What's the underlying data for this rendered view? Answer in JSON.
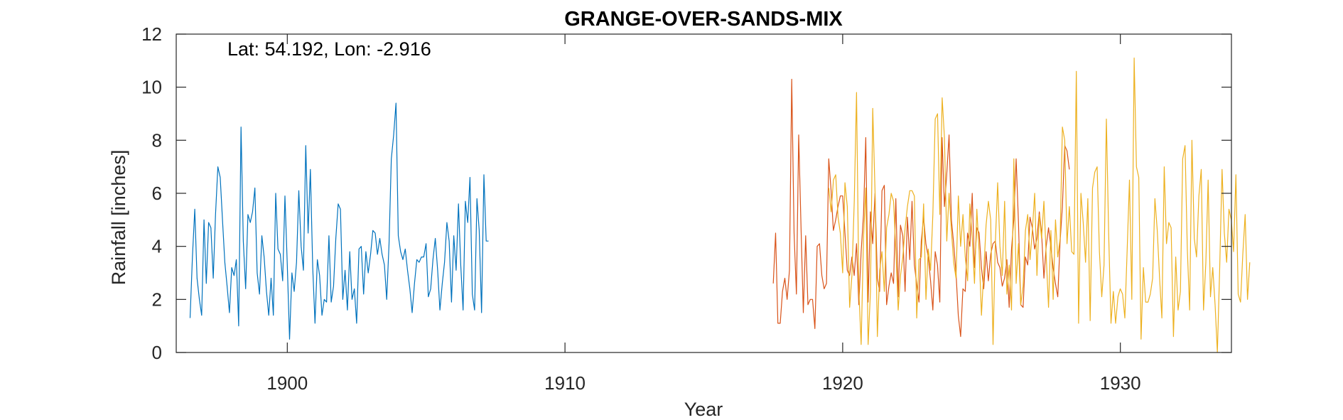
{
  "chart_data": {
    "type": "line",
    "title": "GRANGE-OVER-SANDS-MIX",
    "xlabel": "Year",
    "ylabel": "Rainfall [inches]",
    "xlim": [
      1896,
      1934
    ],
    "ylim": [
      0,
      12
    ],
    "xticks": [
      1900,
      1910,
      1920,
      1930
    ],
    "yticks": [
      0,
      2,
      4,
      6,
      8,
      10,
      12
    ],
    "grid": false,
    "annotation": "Lat: 54.192, Lon: -2.916",
    "series": [
      {
        "color": "#0072BD",
        "start": 1896.5,
        "step": 0.0833,
        "values": [
          1.3,
          3.6,
          5.4,
          2.8,
          2.0,
          1.4,
          5.0,
          2.6,
          4.9,
          4.7,
          2.8,
          5.2,
          7.0,
          6.6,
          5.0,
          3.4,
          2.5,
          1.5,
          3.2,
          2.9,
          3.5,
          1.0,
          8.5,
          4.2,
          2.4,
          5.2,
          4.9,
          5.3,
          6.2,
          3.0,
          2.2,
          4.4,
          3.6,
          2.3,
          1.4,
          2.8,
          1.4,
          6.0,
          3.9,
          3.7,
          2.7,
          5.9,
          3.3,
          0.5,
          3.0,
          2.3,
          3.4,
          6.1,
          4.0,
          3.1,
          7.8,
          4.5,
          6.9,
          3.2,
          1.1,
          3.5,
          2.9,
          1.4,
          2.0,
          1.9,
          4.4,
          1.9,
          2.5,
          4.3,
          5.6,
          5.4,
          2.0,
          3.1,
          1.6,
          3.8,
          2.0,
          2.4,
          1.1,
          3.9,
          4.0,
          2.2,
          3.8,
          3.0,
          3.7,
          4.6,
          4.5,
          3.7,
          4.3,
          3.7,
          3.3,
          2.0,
          4.1,
          7.3,
          8.2,
          9.4,
          4.4,
          3.8,
          3.5,
          3.9,
          3.1,
          2.4,
          1.5,
          2.6,
          3.5,
          3.4,
          3.6,
          3.6,
          4.1,
          2.1,
          2.4,
          3.5,
          4.3,
          3.1,
          1.6,
          2.6,
          3.4,
          4.9,
          4.2,
          1.9,
          4.4,
          3.1,
          5.6,
          3.3,
          1.6,
          5.7,
          4.9,
          6.6,
          2.2,
          1.6,
          5.8,
          4.6,
          1.5,
          6.7,
          4.2,
          4.2
        ]
      },
      {
        "color": "#D95319",
        "start": 1917.5,
        "step": 0.0833,
        "values": [
          2.6,
          4.5,
          1.1,
          1.1,
          2.3,
          2.8,
          2.0,
          3.1,
          10.3,
          4.5,
          2.2,
          8.2,
          4.7,
          1.5,
          4.4,
          1.8,
          2.0,
          2.0,
          0.9,
          4.0,
          4.1,
          2.9,
          2.4,
          2.6,
          7.3,
          6.1,
          4.6,
          5.0,
          5.5,
          5.9,
          5.9,
          4.5,
          3.1,
          2.9,
          3.6,
          2.9,
          4.1,
          1.8,
          3.8,
          5.2,
          8.1,
          1.9,
          5.3,
          4.1,
          6.0,
          2.8,
          2.3,
          6.1,
          6.3,
          1.8,
          2.5,
          3.0,
          2.6,
          5.8,
          2.1,
          4.8,
          4.4,
          2.3,
          5.1,
          3.5,
          5.7,
          3.3,
          2.6,
          1.9,
          4.2,
          5.1,
          4.1,
          3.6,
          2.7,
          1.6,
          3.8,
          3.3,
          1.9,
          8.1,
          5.5,
          6.7,
          8.2,
          5.0,
          4.1,
          3.0,
          1.4,
          0.6,
          2.4,
          2.3,
          4.5,
          4.0,
          6.0,
          3.2,
          4.7,
          4.5,
          3.2,
          2.4,
          3.8,
          2.7,
          3.7,
          4.1,
          4.2,
          3.4,
          3.2,
          2.5,
          2.8,
          3.5,
          1.7,
          3.9,
          5.0,
          7.3,
          4.9,
          1.8,
          1.7,
          3.6,
          3.3,
          5.1,
          4.7,
          3.9,
          4.3,
          5.3,
          4.5,
          2.8,
          4.0,
          4.7,
          4.0,
          3.2,
          2.6,
          2.1,
          4.2,
          5.5,
          7.8,
          7.6,
          6.9
        ]
      },
      {
        "color": "#EDB120",
        "start": 1919.5,
        "step": 0.0833,
        "values": [
          6.2,
          5.3,
          6.5,
          6.7,
          5.1,
          4.5,
          3.0,
          6.4,
          5.5,
          1.7,
          2.9,
          5.7,
          9.8,
          2.3,
          0.3,
          4.3,
          6.2,
          0.3,
          2.3,
          9.2,
          6.0,
          0.6,
          3.1,
          3.8,
          2.3,
          4.7,
          5.2,
          6.0,
          5.7,
          3.8,
          1.6,
          2.9,
          3.6,
          4.7,
          5.5,
          6.1,
          6.1,
          5.9,
          1.3,
          3.5,
          3.6,
          5.6,
          2.0,
          3.9,
          3.1,
          5.2,
          8.8,
          9.0,
          5.2,
          9.6,
          8.1,
          4.2,
          6.0,
          4.6,
          3.4,
          2.8,
          5.9,
          4.0,
          5.2,
          3.6,
          2.7,
          5.6,
          4.3,
          2.6,
          5.4,
          3.8,
          1.4,
          3.1,
          4.8,
          5.7,
          5.0,
          0.3,
          4.1,
          6.4,
          4.0,
          2.9,
          5.7,
          2.2,
          3.3,
          1.6,
          7.3,
          2.6,
          4.1,
          1.8,
          2.5,
          4.6,
          5.2,
          3.5,
          4.6,
          6.0,
          2.9,
          5.2,
          4.3,
          5.7,
          3.6,
          1.7,
          4.6,
          2.0,
          5.0,
          3.6,
          4.3,
          8.5,
          8.0,
          4.1,
          5.5,
          3.8,
          3.7,
          10.6,
          1.1,
          6.0,
          4.9,
          3.4,
          5.8,
          1.2,
          6.2,
          6.8,
          7.0,
          3.8,
          2.1,
          3.3,
          8.8,
          4.5,
          1.1,
          2.3,
          1.1,
          2.1,
          2.4,
          2.2,
          1.3,
          3.9,
          6.5,
          2.0,
          11.1,
          7.0,
          6.6,
          0.5,
          3.2,
          1.9,
          1.9,
          2.2,
          2.8,
          5.8,
          4.6,
          2.8,
          1.3,
          7.0,
          4.1,
          4.9,
          4.7,
          0.6,
          3.6,
          1.6,
          2.3,
          7.3,
          7.8,
          3.9,
          1.6,
          8.0,
          4.3,
          3.6,
          5.9,
          6.9,
          1.6,
          3.4,
          6.5,
          2.1,
          3.2,
          1.8,
          0.0,
          3.2,
          6.9,
          4.5,
          3.4,
          5.4,
          5.0,
          3.8,
          6.7,
          2.2,
          1.9,
          3.7,
          5.2,
          2.0,
          3.4
        ]
      }
    ]
  }
}
